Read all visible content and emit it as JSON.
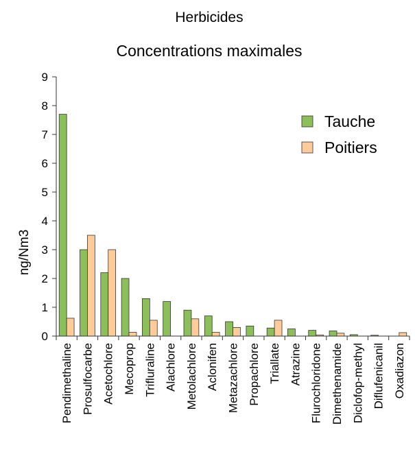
{
  "chart_data": {
    "type": "bar",
    "title": "Herbicides",
    "subtitle": "Concentrations maximales",
    "ylabel": "ng/Nm3",
    "xlabel": "",
    "ylim": [
      0,
      9
    ],
    "yticks": [
      0,
      1,
      2,
      3,
      4,
      5,
      6,
      7,
      8,
      9
    ],
    "grid": false,
    "legend_position": "top-right",
    "categories": [
      "Pendimethaline",
      "Prosulfocarbe",
      "Acetochlore",
      "Mecoprop",
      "Trifluraline",
      "Alachlore",
      "Metolachlore",
      "Aclonifen",
      "Metazachlore",
      "Propachlore",
      "Triallate",
      "Atrazine",
      "Flurochloridone",
      "Dimethenamide",
      "Diclofop-methyl",
      "Diflufenicanil",
      "Oxadiazon"
    ],
    "series": [
      {
        "name": "Tauche",
        "color": "#8cbf5a",
        "values": [
          7.7,
          3.0,
          2.2,
          2.0,
          1.3,
          1.2,
          0.9,
          0.7,
          0.5,
          0.35,
          0.28,
          0.25,
          0.2,
          0.18,
          0.05,
          0.03,
          0
        ]
      },
      {
        "name": "Poitiers",
        "color": "#ffcc99",
        "values": [
          0.62,
          3.5,
          3.0,
          0.13,
          0.55,
          0,
          0.6,
          0.13,
          0.3,
          0,
          0.55,
          0,
          0.04,
          0.1,
          0,
          0,
          0.12
        ]
      }
    ]
  }
}
